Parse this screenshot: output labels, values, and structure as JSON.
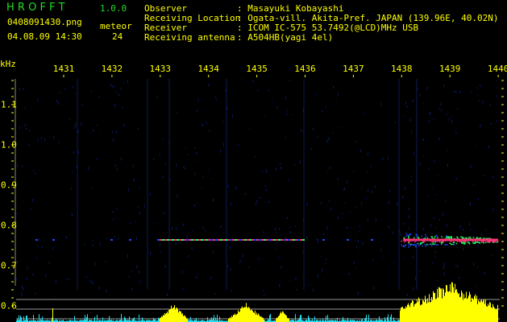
{
  "header": {
    "app_name": "H R O F F T",
    "version": "1.0.0",
    "filename": "0408091430.png",
    "datetime": "04.08.09 14:30",
    "meteor_label": "meteor",
    "meteor_count": "24",
    "info": [
      {
        "label": "Observer",
        "value": ": Masayuki Kobayashi"
      },
      {
        "label": "Receiving Location",
        "value": ": Ogata-vill. Akita-Pref. JAPAN (139.96E, 40.02N)"
      },
      {
        "label": "Receiver",
        "value": ": ICOM IC-575 53.7492(@LCD)MHz USB"
      },
      {
        "label": "Receiving antenna",
        "value": ": A504HB(yagi 4el)"
      }
    ]
  },
  "spectrogram": {
    "y_unit": "kHz",
    "x_ticks": [
      "1431",
      "1432",
      "1433",
      "1434",
      "1435",
      "1436",
      "1437",
      "1438",
      "1439",
      "1440"
    ],
    "y_ticks": [
      "1.1",
      "1.0",
      "0.9",
      "0.8",
      "0.7",
      "0.6"
    ],
    "echo_frequency_khz": 0.764,
    "colors": {
      "background": "#000000",
      "text": "#ffff00",
      "logo": "#22dd22",
      "strong": "#ff3377",
      "mid": "#22ff66",
      "weak": "#2244ff",
      "bar_high": "#ffff00",
      "bar_low": "#22e0ee"
    }
  }
}
